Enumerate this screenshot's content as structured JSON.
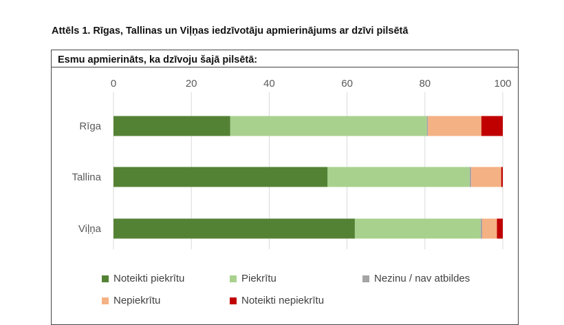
{
  "figure_title": "Attēls 1. Rīgas, Tallinas un Viļņas iedzīvotāju apmierinājums ar dzīvi pilsētā",
  "chart_data": {
    "type": "bar",
    "orientation": "horizontal",
    "stacked": true,
    "title": "Esmu apmierināts, ka dzīvoju šajā pilsētā:",
    "categories": [
      "Rīga",
      "Tallina",
      "Viļņa"
    ],
    "xlim": [
      0,
      100
    ],
    "x_ticks": [
      0,
      20,
      40,
      60,
      80,
      100
    ],
    "grid": true,
    "legend_position": "bottom",
    "series": [
      {
        "name": "Noteikti piekrītu",
        "color": "#548235",
        "values": [
          30,
          55,
          62
        ]
      },
      {
        "name": "Piekrītu",
        "color": "#a9d18e",
        "values": [
          50.5,
          36.5,
          32.3
        ]
      },
      {
        "name": "Nezinu / nav atbildes",
        "color": "#a5a5a5",
        "values": [
          0.3,
          0.4,
          0.4
        ]
      },
      {
        "name": "Nepiekrītu",
        "color": "#f4b183",
        "values": [
          13.7,
          7.7,
          3.8
        ]
      },
      {
        "name": "Noteikti nepiekrītu",
        "color": "#c00000",
        "values": [
          5.5,
          0.4,
          1.5
        ]
      }
    ]
  }
}
